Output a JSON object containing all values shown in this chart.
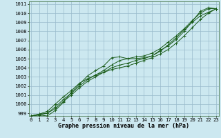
{
  "title": "Graphe pression niveau de la mer (hPa)",
  "bg_color": "#cce8f0",
  "grid_color": "#99bbcc",
  "line_color": "#1a5c1a",
  "border_color": "#336633",
  "marker": "+",
  "xmin": 0,
  "xmax": 23,
  "ymin": 999,
  "ymax": 1011,
  "series": [
    [
      998.7,
      998.8,
      998.7,
      999.3,
      1000.2,
      1001.3,
      1002.2,
      1003.1,
      1003.7,
      1004.2,
      1005.1,
      1005.2,
      1005.0,
      1005.0,
      1005.1,
      1005.3,
      1005.9,
      1006.4,
      1007.1,
      1008.0,
      1009.1,
      1010.2,
      1010.6,
      1010.5
    ],
    [
      998.7,
      998.9,
      999.2,
      1000.0,
      1000.8,
      1001.5,
      1002.3,
      1002.8,
      1003.2,
      1003.5,
      1003.8,
      1004.0,
      1004.2,
      1004.5,
      1004.8,
      1005.1,
      1005.5,
      1006.0,
      1006.7,
      1007.5,
      1008.4,
      1009.3,
      1010.0,
      1010.5
    ],
    [
      998.7,
      998.9,
      999.0,
      999.5,
      1000.3,
      1001.0,
      1001.8,
      1002.5,
      1003.0,
      1003.5,
      1004.0,
      1004.3,
      1004.5,
      1004.8,
      1005.0,
      1005.3,
      1005.8,
      1006.5,
      1007.3,
      1008.2,
      1009.0,
      1009.7,
      1010.1,
      1010.5
    ],
    [
      998.7,
      998.8,
      999.0,
      999.7,
      1000.5,
      1001.2,
      1002.0,
      1002.7,
      1003.2,
      1003.7,
      1004.3,
      1004.8,
      1005.0,
      1005.2,
      1005.3,
      1005.6,
      1006.1,
      1006.8,
      1007.5,
      1008.3,
      1009.2,
      1010.0,
      1010.5,
      1010.5
    ]
  ],
  "title_fontsize": 6.0,
  "tick_fontsize": 5.2
}
